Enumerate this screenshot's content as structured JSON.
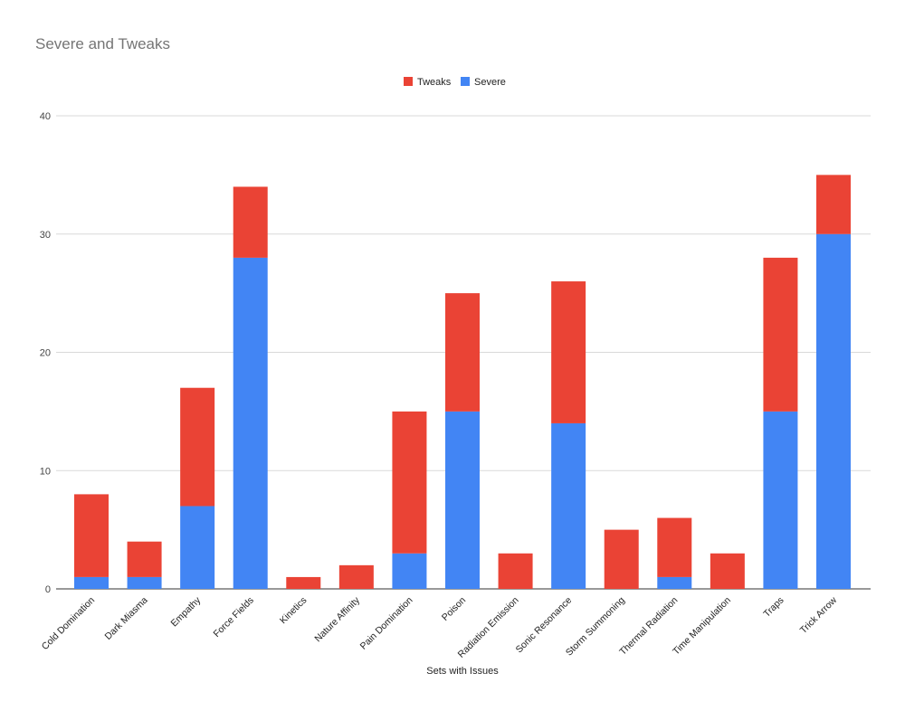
{
  "chart_data": {
    "type": "bar",
    "stacked": true,
    "title": "Severe and Tweaks",
    "xlabel": "Sets with Issues",
    "ylabel": "",
    "ylim": [
      0,
      40
    ],
    "yticks": [
      0,
      10,
      20,
      30,
      40
    ],
    "grid": true,
    "legend_position": "top",
    "categories": [
      "Cold Domination",
      "Dark Miasma",
      "Empathy",
      "Force Fields",
      "Kinetics",
      "Nature Affinity",
      "Pain Domination",
      "Poison",
      "Radiation Emission",
      "Sonic Resonance",
      "Storm Summoning",
      "Thermal Radiation",
      "Time Manipulation",
      "Traps",
      "Trick Arrow"
    ],
    "series": [
      {
        "name": "Severe",
        "color": "#4285f4",
        "values": [
          1,
          1,
          7,
          28,
          0,
          0,
          3,
          15,
          0,
          14,
          0,
          1,
          0,
          15,
          30
        ]
      },
      {
        "name": "Tweaks",
        "color": "#ea4335",
        "values": [
          7,
          3,
          10,
          6,
          1,
          2,
          12,
          10,
          3,
          12,
          5,
          5,
          3,
          13,
          5
        ]
      }
    ],
    "legend_order": [
      "Tweaks",
      "Severe"
    ]
  }
}
